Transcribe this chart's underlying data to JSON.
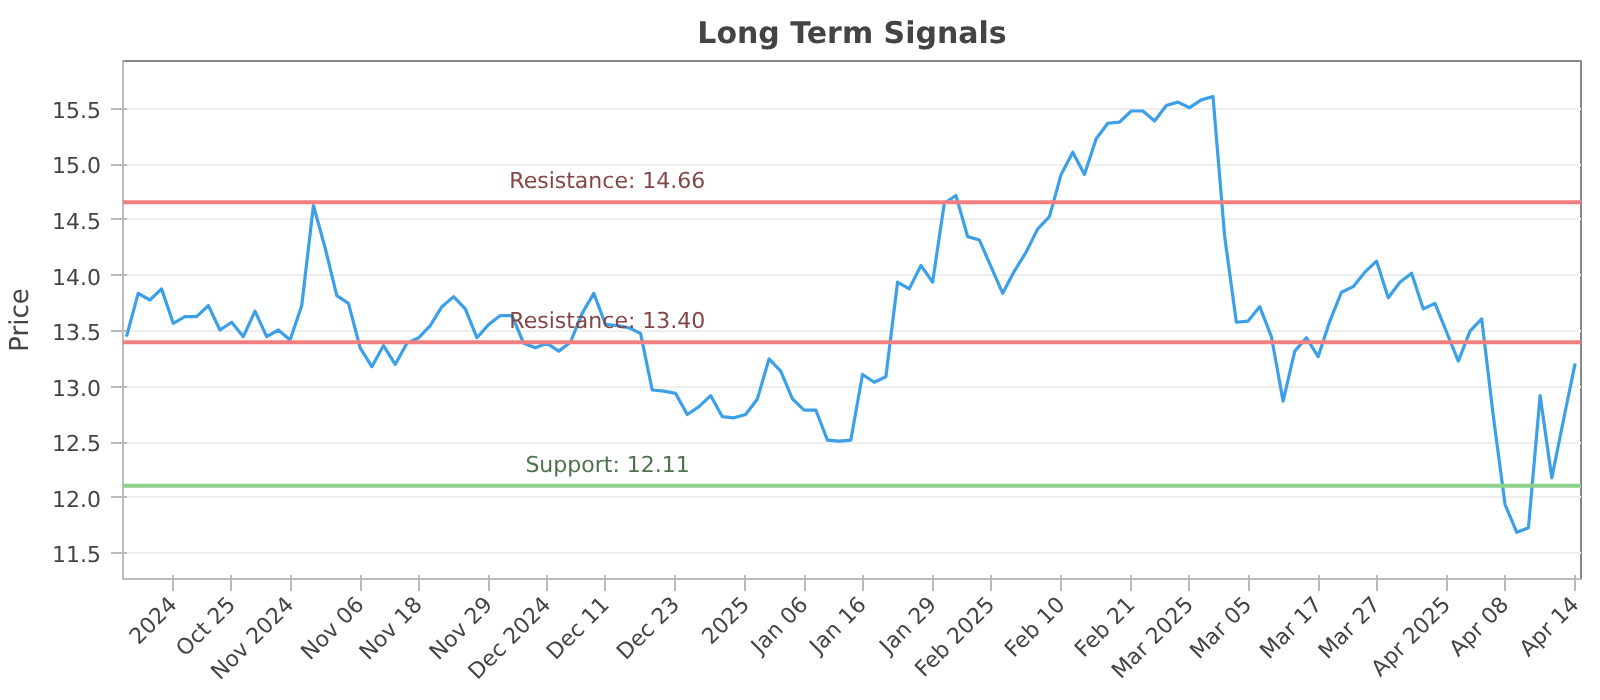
{
  "chart_data": {
    "type": "line",
    "title": "Long Term Signals",
    "ylabel": "Price",
    "categories": [
      null,
      null,
      null,
      null,
      "2024",
      null,
      null,
      null,
      null,
      "Oct 25",
      null,
      null,
      null,
      null,
      "Nov 2024",
      null,
      null,
      null,
      null,
      null,
      "Nov 06",
      null,
      null,
      null,
      null,
      "Nov 18",
      null,
      null,
      null,
      null,
      null,
      "Nov 29",
      null,
      null,
      null,
      null,
      "Dec 2024",
      null,
      null,
      null,
      null,
      "Dec 11",
      null,
      null,
      null,
      null,
      null,
      "Dec 23",
      null,
      null,
      null,
      null,
      null,
      "2025",
      null,
      null,
      null,
      null,
      "Jan 06",
      null,
      null,
      null,
      null,
      "Jan 16",
      null,
      null,
      null,
      null,
      null,
      "Jan 29",
      null,
      null,
      null,
      null,
      "Feb 2025",
      null,
      null,
      null,
      null,
      null,
      "Feb 10",
      null,
      null,
      null,
      null,
      null,
      "Feb 21",
      null,
      null,
      null,
      null,
      "Mar 2025",
      null,
      null,
      null,
      null,
      "Mar 05",
      null,
      null,
      null,
      null,
      null,
      "Mar 17",
      null,
      null,
      null,
      null,
      "Mar 27",
      null,
      null,
      null,
      null,
      null,
      "Apr 2025",
      null,
      null,
      null,
      null,
      "Apr 08",
      null,
      null,
      null,
      null,
      null,
      "Apr 14"
    ],
    "series": [
      {
        "color": "#3ca0e8",
        "values": [
          13.45,
          13.84,
          13.78,
          13.88,
          13.57,
          13.63,
          13.63,
          13.73,
          13.51,
          13.58,
          13.45,
          13.68,
          13.45,
          13.51,
          13.42,
          13.73,
          14.63,
          14.25,
          13.82,
          13.75,
          13.35,
          13.18,
          13.37,
          13.2,
          13.39,
          13.44,
          13.55,
          13.72,
          13.81,
          13.7,
          13.44,
          13.56,
          13.64,
          13.64,
          13.39,
          13.35,
          13.39,
          13.32,
          13.4,
          13.66,
          13.84,
          13.56,
          13.55,
          13.53,
          13.48,
          12.97,
          12.96,
          12.94,
          12.75,
          12.82,
          12.92,
          12.73,
          12.72,
          12.75,
          12.89,
          13.25,
          13.14,
          12.89,
          12.79,
          12.79,
          12.52,
          12.51,
          12.52,
          13.11,
          13.04,
          13.09,
          13.94,
          13.88,
          14.09,
          13.94,
          14.65,
          14.72,
          14.35,
          14.32,
          14.08,
          13.84,
          14.04,
          14.21,
          14.42,
          14.53,
          14.91,
          15.11,
          14.91,
          15.23,
          15.37,
          15.38,
          15.48,
          15.48,
          15.39,
          15.53,
          15.56,
          15.51,
          15.58,
          15.61,
          14.35,
          13.58,
          13.59,
          13.72,
          13.45,
          12.87,
          13.32,
          13.44,
          13.27,
          13.59,
          13.85,
          13.9,
          14.03,
          14.13,
          13.8,
          13.94,
          14.02,
          13.7,
          13.75,
          13.49,
          13.23,
          13.5,
          13.61,
          12.73,
          11.94,
          11.69,
          11.73,
          12.92,
          12.18,
          12.7,
          13.21
        ]
      }
    ],
    "ylim": [
      11.27,
      15.93
    ],
    "yticks": [
      11.5,
      {
        "value": 12,
        "label": "12.0"
      },
      12.5,
      {
        "value": 13,
        "label": "13.0"
      },
      13.5,
      {
        "value": 14,
        "label": "14.0"
      },
      14.5,
      {
        "value": 15,
        "label": "15.0"
      },
      15.5
    ],
    "grid": "y",
    "marker": "none",
    "line_style": "solid",
    "ref_lines": [
      {
        "axis": "y",
        "value": 14.66,
        "label": "Resistance: 14.66",
        "color": "#f08080"
      },
      {
        "axis": "y",
        "value": 13.4,
        "label": "Resistance: 13.40",
        "color": "#f08080"
      },
      {
        "axis": "y",
        "value": 12.11,
        "label": "Support: 12.11",
        "color": "#8fd18f"
      }
    ]
  }
}
